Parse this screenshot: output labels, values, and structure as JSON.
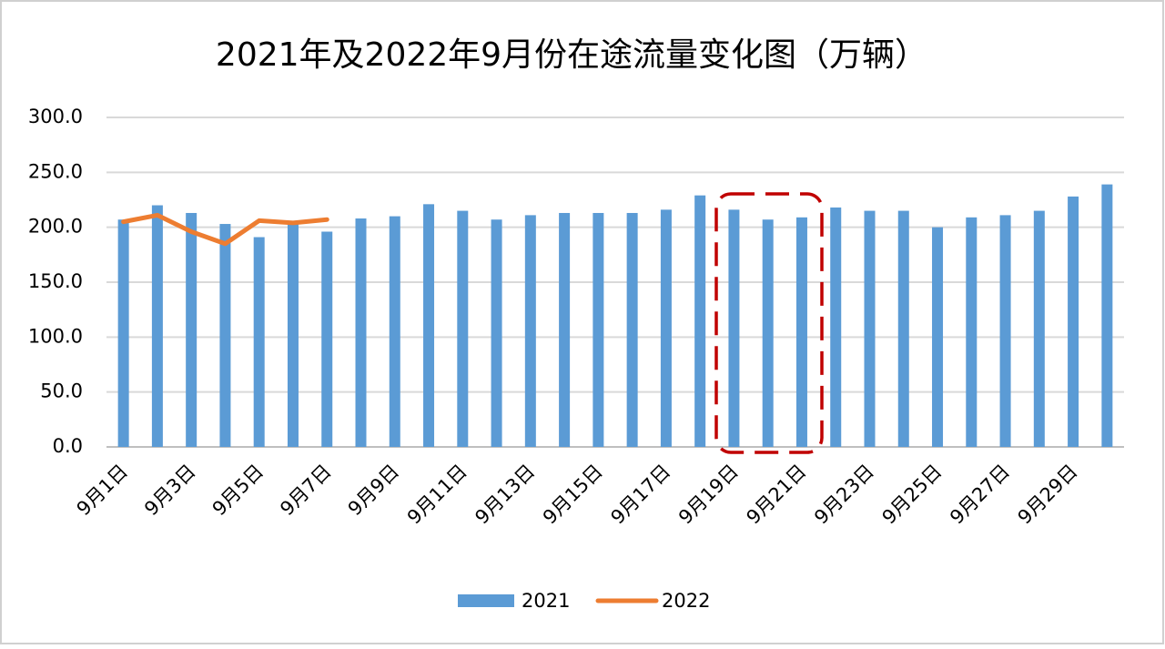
{
  "chart_data": {
    "type": "bar",
    "title": "2021年及2022年9月份在途流量变化图（万辆）",
    "categories": [
      "9月1日",
      null,
      "9月3日",
      null,
      "9月5日",
      null,
      "9月7日",
      null,
      "9月9日",
      null,
      "9月11日",
      null,
      "9月13日",
      null,
      "9月15日",
      null,
      "9月17日",
      null,
      "9月19日",
      null,
      "9月21日",
      null,
      "9月23日",
      null,
      "9月25日",
      null,
      "9月27日",
      null,
      "9月29日",
      null
    ],
    "series": [
      {
        "name": "2021",
        "type": "bar",
        "color": "#5b9bd5",
        "values": [
          207,
          220,
          213,
          203,
          191,
          204,
          196,
          208,
          210,
          221,
          215,
          207,
          211,
          213,
          213,
          213,
          216,
          229,
          216,
          207,
          209,
          218,
          215,
          215,
          200,
          209,
          211,
          215,
          228,
          239
        ]
      },
      {
        "name": "2022",
        "type": "line",
        "color": "#ed7d31",
        "values": [
          205,
          211,
          196,
          185,
          206,
          204,
          207,
          null,
          null,
          null,
          null,
          null,
          null,
          null,
          null,
          null,
          null,
          null,
          null,
          null,
          null,
          null,
          null,
          null,
          null,
          null,
          null,
          null,
          null,
          null
        ]
      }
    ],
    "ylim": [
      0,
      300
    ],
    "yticks": [
      {
        "value": 0,
        "label": "0.0"
      },
      {
        "value": 50,
        "label": "50.0"
      },
      {
        "value": 100,
        "label": "100.0"
      },
      {
        "value": 150,
        "label": "150.0"
      },
      {
        "value": 200,
        "label": "200.0"
      },
      {
        "value": 250,
        "label": "250.0"
      },
      {
        "value": 300,
        "label": "300.0"
      }
    ],
    "grid": true,
    "legend": "bottom"
  }
}
